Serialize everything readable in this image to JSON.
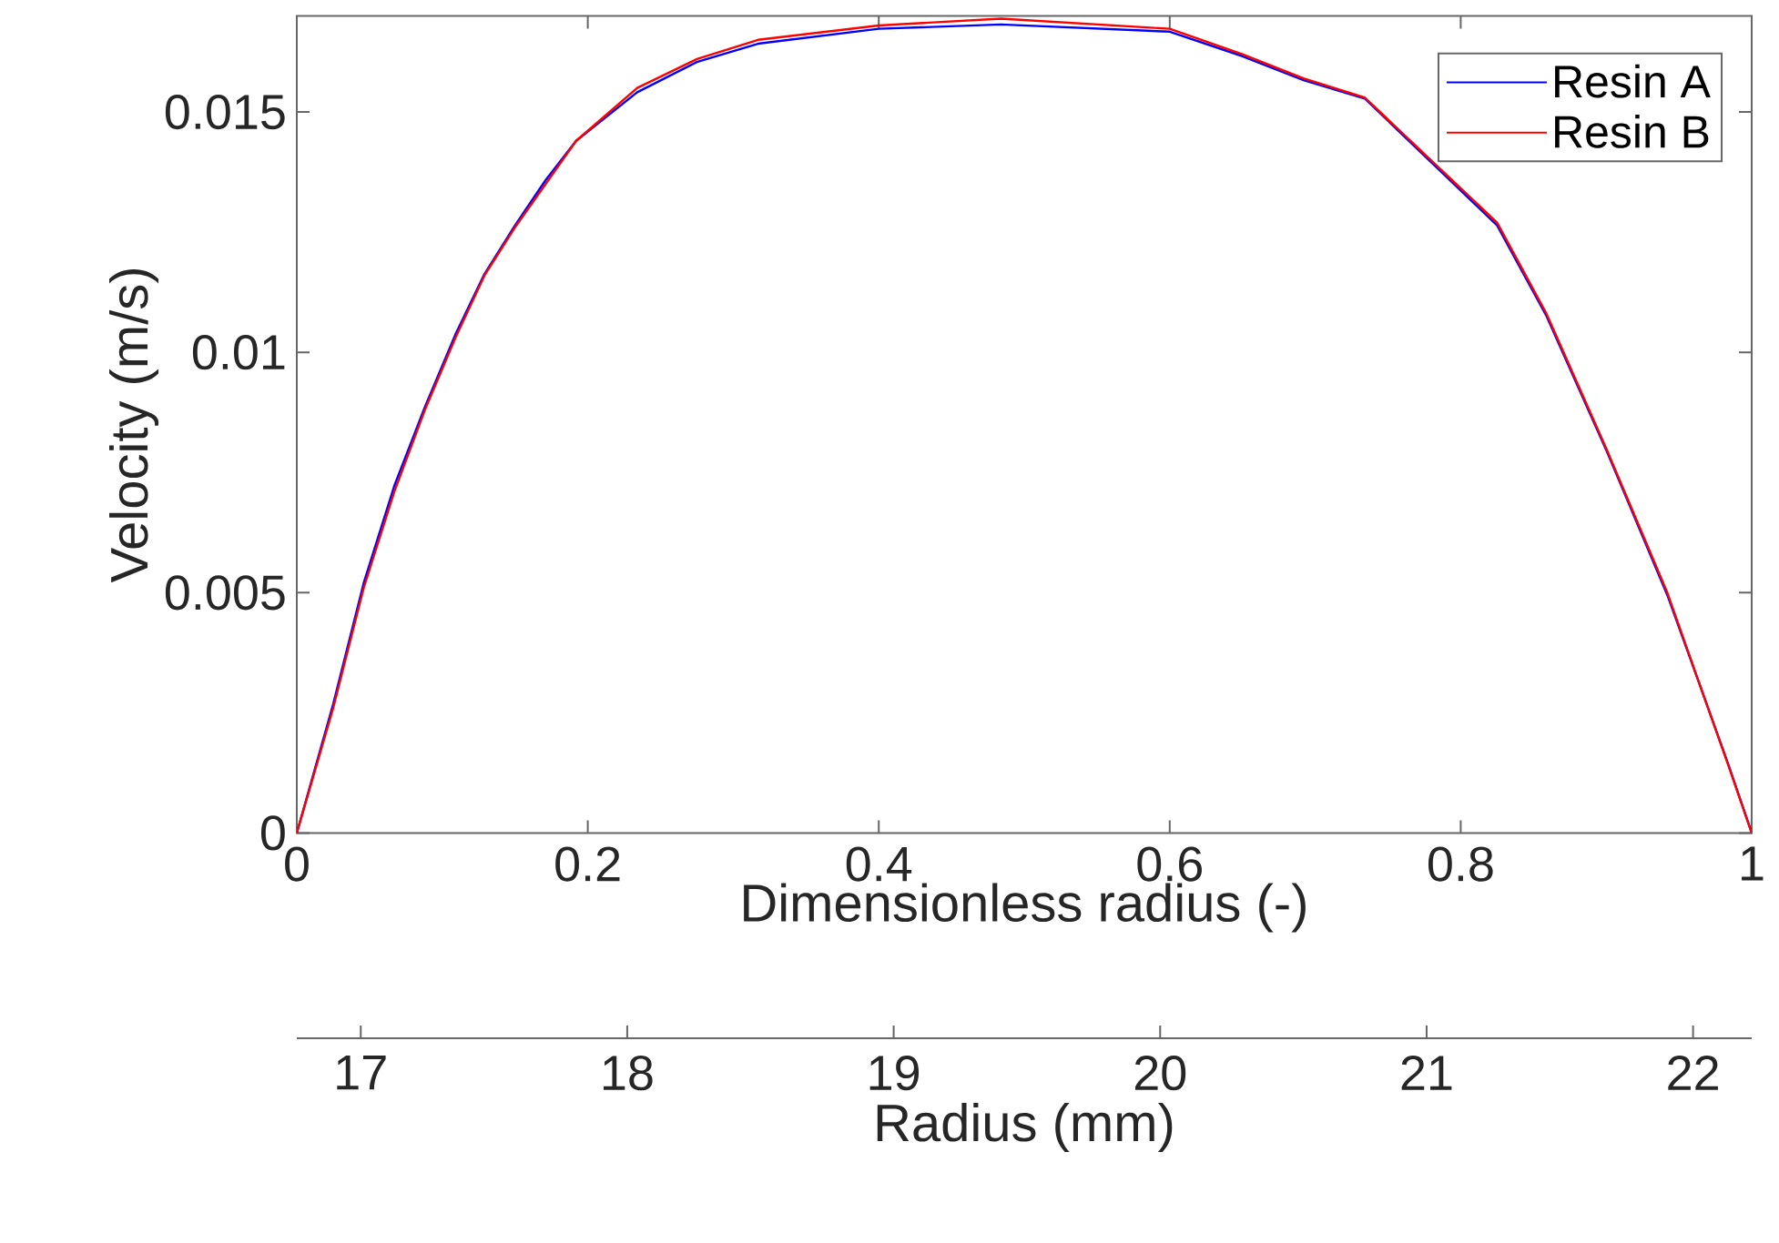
{
  "chart_data": {
    "type": "line",
    "xlabel": "Dimensionless radius (-)",
    "ylabel": "Velocity (m/s)",
    "x2label": "Radius (mm)",
    "xlim": [
      0,
      1
    ],
    "xticks": [
      0,
      0.2,
      0.4,
      0.6,
      0.8,
      1
    ],
    "ylim": [
      0,
      0.017
    ],
    "yticks": [
      0,
      0.005,
      0.01,
      0.015
    ],
    "x2lim": [
      16.76,
      22.22
    ],
    "x2ticks": [
      17,
      18,
      19,
      20,
      21,
      22
    ],
    "legend": "top right",
    "line_style": "solid",
    "marker": "none",
    "grid": false,
    "series": [
      {
        "name": "Resin A",
        "color": "#0000ff",
        "x": [
          0,
          0.025,
          0.046,
          0.067,
          0.088,
          0.109,
          0.129,
          0.15,
          0.171,
          0.192,
          0.234,
          0.275,
          0.317,
          0.4,
          0.484,
          0.6,
          0.65,
          0.692,
          0.734,
          0.825,
          0.859,
          0.9,
          0.942,
          0.963,
          0.984,
          1
        ],
        "values": [
          0,
          0.00268,
          0.0052,
          0.00722,
          0.00886,
          0.01037,
          0.01163,
          0.01264,
          0.01358,
          0.0144,
          0.01541,
          0.01604,
          0.01642,
          0.01673,
          0.01682,
          0.01667,
          0.01616,
          0.01566,
          0.01528,
          0.01264,
          0.01075,
          0.00797,
          0.00495,
          0.00319,
          0.00142,
          0
        ]
      },
      {
        "name": "Resin B",
        "color": "#ff0000",
        "x": [
          0,
          0.025,
          0.046,
          0.067,
          0.088,
          0.109,
          0.129,
          0.15,
          0.171,
          0.192,
          0.234,
          0.275,
          0.317,
          0.4,
          0.484,
          0.6,
          0.65,
          0.692,
          0.734,
          0.825,
          0.859,
          0.9,
          0.942,
          0.963,
          0.984,
          1
        ],
        "values": [
          0,
          0.0026,
          0.0051,
          0.0071,
          0.0088,
          0.0103,
          0.0116,
          0.0126,
          0.0135,
          0.0144,
          0.0155,
          0.0161,
          0.0165,
          0.0168,
          0.01694,
          0.01673,
          0.0162,
          0.0157,
          0.0153,
          0.0127,
          0.0108,
          0.008,
          0.005,
          0.0032,
          0.0014,
          0
        ]
      }
    ]
  }
}
